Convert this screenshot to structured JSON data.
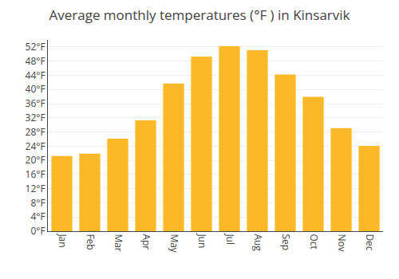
{
  "chart_data": {
    "type": "bar",
    "title": "Average monthly temperatures (°F ) in Kinsarvik",
    "categories": [
      "Jan",
      "Feb",
      "Mar",
      "Apr",
      "May",
      "Jun",
      "Jul",
      "Aug",
      "Sep",
      "Oct",
      "Nov",
      "Dec"
    ],
    "values": [
      21.2,
      21.9,
      26.1,
      31.3,
      41.7,
      49.3,
      52.2,
      51.1,
      44.2,
      37.9,
      29.1,
      24.1
    ],
    "color": "#FDB827",
    "ylim": [
      0,
      54
    ],
    "yticks": [
      {
        "value": 0,
        "label": "0°F"
      },
      {
        "value": 4,
        "label": "4°F"
      },
      {
        "value": 8,
        "label": "8°F"
      },
      {
        "value": 12,
        "label": "12°F"
      },
      {
        "value": 16,
        "label": "16°F"
      },
      {
        "value": 20,
        "label": "20°F"
      },
      {
        "value": 24,
        "label": "24°F"
      },
      {
        "value": 28,
        "label": "28°F"
      },
      {
        "value": 32,
        "label": "32°F"
      },
      {
        "value": 36,
        "label": "36°F"
      },
      {
        "value": 40,
        "label": "40°F"
      },
      {
        "value": 44,
        "label": "44°F"
      },
      {
        "value": 48,
        "label": "48°F"
      },
      {
        "value": 52,
        "label": "52°F"
      }
    ],
    "grid": true
  }
}
